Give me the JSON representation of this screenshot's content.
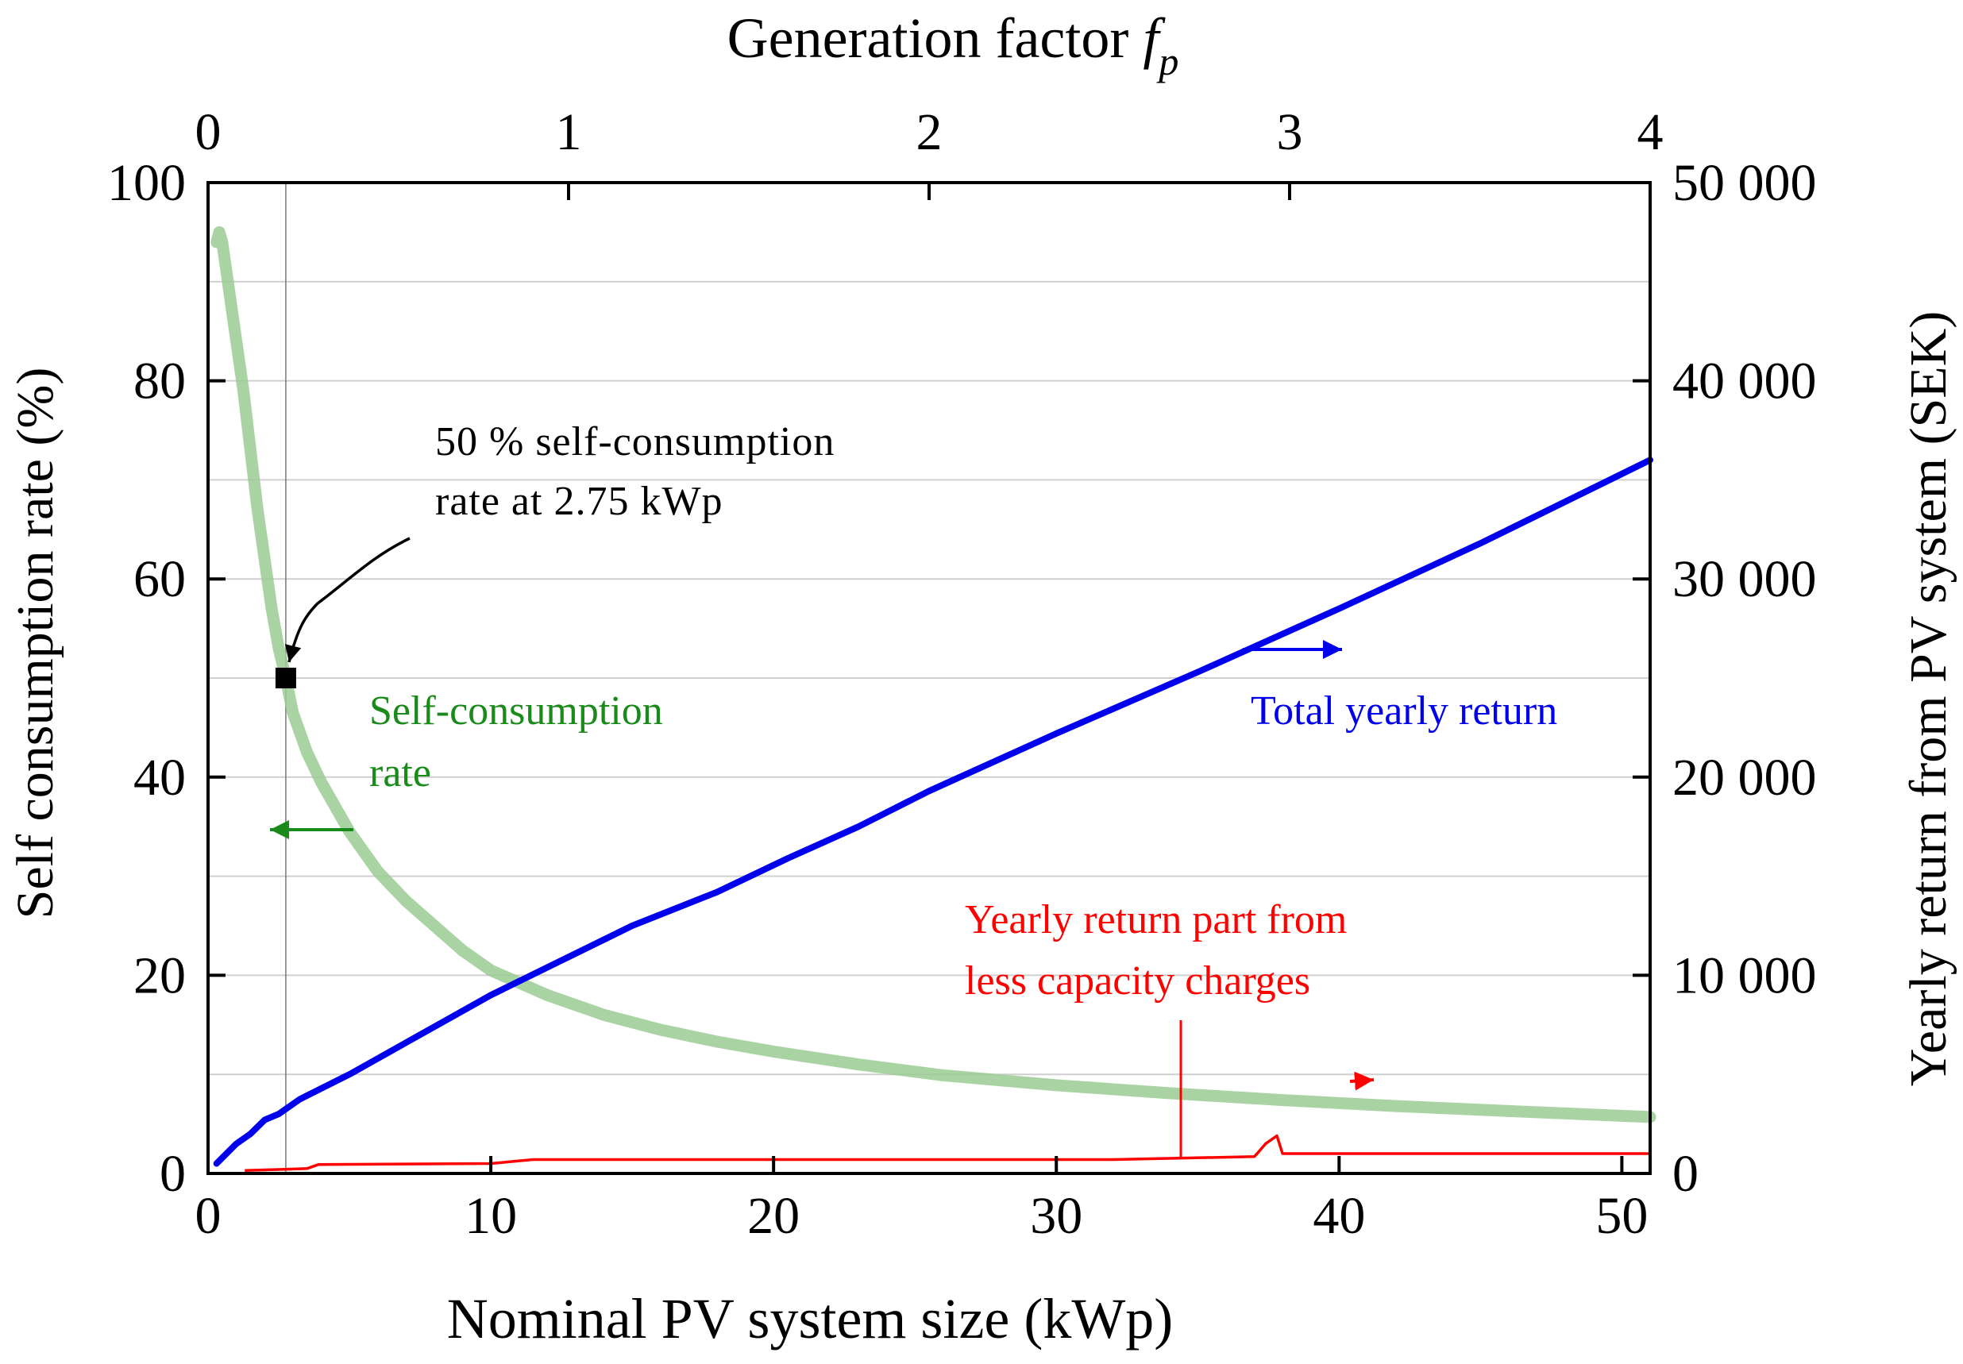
{
  "chart_data": {
    "type": "line",
    "x_bottom": {
      "label": "Nominal PV system size (kWp)",
      "range": [
        0,
        51
      ],
      "ticks": [
        0,
        10,
        20,
        30,
        40,
        50
      ]
    },
    "x_top": {
      "label_main": "Generation factor ",
      "label_symbol": "f",
      "label_sub": "p",
      "range": [
        0,
        4
      ],
      "ticks": [
        0,
        1,
        2,
        3,
        4
      ]
    },
    "y_left": {
      "label": "Self consumption rate (%)",
      "range": [
        0,
        100
      ],
      "ticks": [
        0,
        20,
        40,
        60,
        80,
        100
      ]
    },
    "y_right": {
      "label": "Yearly return from PV system (SEK)",
      "range": [
        0,
        50000
      ],
      "ticks": [
        0,
        10000,
        20000,
        30000,
        40000,
        50000
      ],
      "tick_labels": [
        "0",
        "10 000",
        "20 000",
        "30 000",
        "40 000",
        "50 000"
      ]
    },
    "grid": {
      "horizontal": true,
      "step_left": 10
    },
    "reference_line_x": 2.75,
    "series": [
      {
        "name": "Self-consumption rate",
        "axis": "left",
        "color": "#9bcb94",
        "x": [
          0.3,
          0.4,
          0.5,
          0.6,
          0.8,
          1,
          1.25,
          1.5,
          1.75,
          2,
          2.25,
          2.5,
          2.75,
          3,
          3.5,
          4,
          5,
          6,
          7,
          8,
          9,
          10,
          12,
          14,
          16,
          18,
          20,
          23,
          26,
          30,
          34,
          38,
          42,
          46,
          51
        ],
        "y": [
          94,
          95,
          94,
          92,
          88,
          84,
          79,
          73,
          67,
          62,
          57,
          53,
          50,
          46.5,
          42.5,
          39.5,
          34.5,
          30.5,
          27.5,
          25,
          22.5,
          20.5,
          18,
          16,
          14.5,
          13.3,
          12.3,
          11,
          9.9,
          8.9,
          8.1,
          7.4,
          6.8,
          6.3,
          5.7
        ]
      },
      {
        "name": "Total yearly return",
        "axis": "right",
        "color": "#0000ee",
        "x": [
          0.3,
          1,
          1.5,
          2,
          2.5,
          3,
          3.25,
          5,
          10,
          15,
          18,
          20.5,
          23,
          25.5,
          30,
          35,
          40,
          45,
          51
        ],
        "y": [
          500,
          1500,
          2000,
          2700,
          3000,
          3500,
          3750,
          5000,
          9000,
          12500,
          14200,
          15900,
          17500,
          19300,
          22200,
          25300,
          28500,
          31800,
          36000
        ]
      },
      {
        "name": "Yearly return part from less capacity charges",
        "axis": "right",
        "color": "#ff0000",
        "x": [
          1.3,
          2.5,
          3.5,
          3.9,
          10,
          11.5,
          32,
          37,
          37.1,
          37.4,
          37.8,
          38,
          51
        ],
        "y": [
          150,
          200,
          250,
          450,
          500,
          700,
          700,
          850,
          1000,
          1500,
          1900,
          1000,
          1000
        ]
      }
    ],
    "highlight_point": {
      "x": 2.75,
      "y": 50
    },
    "annotations": {
      "callout_line1": "50 % self-consumption",
      "callout_line2": "rate at 2.75 kWp",
      "green_label_line1": "Self-consumption",
      "green_label_line2": "rate",
      "blue_label": "Total yearly return",
      "red_label_line1": "Yearly return part from",
      "red_label_line2": "less capacity charges"
    }
  }
}
